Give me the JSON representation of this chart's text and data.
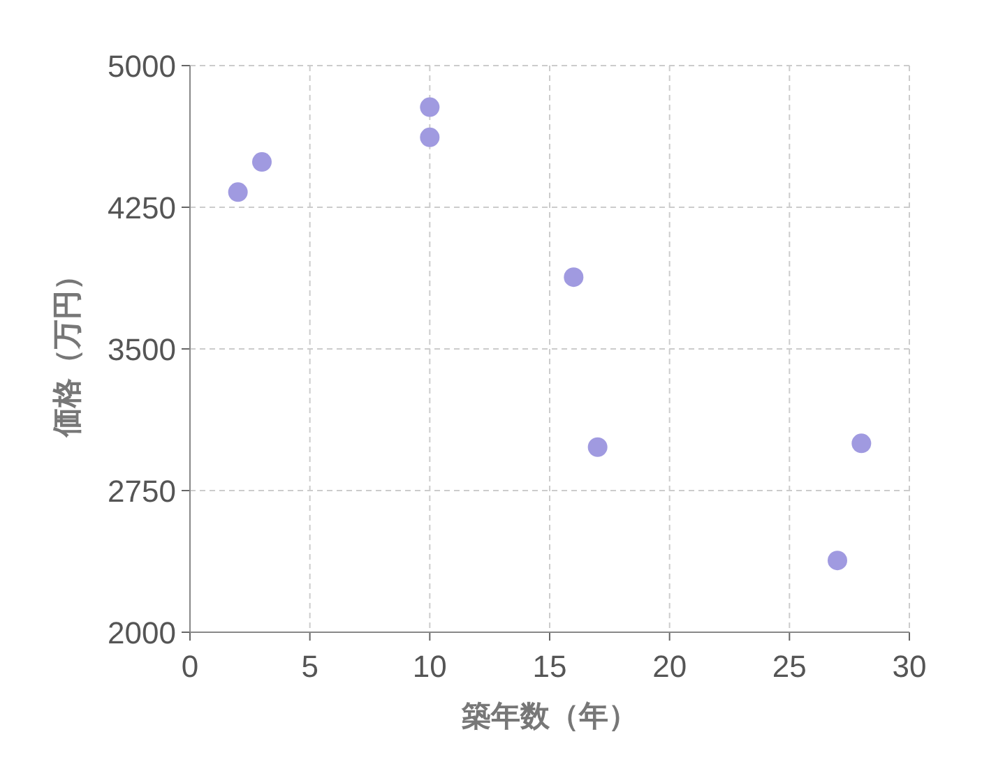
{
  "chart_data": {
    "type": "scatter",
    "xlabel": "築年数（年）",
    "ylabel": "価格（万円）",
    "x": [
      2,
      3,
      10,
      10,
      16,
      17,
      27,
      28
    ],
    "series": [
      {
        "color": "#a09ae0",
        "values": [
          4330,
          4490,
          4780,
          4620,
          3880,
          2980,
          2380,
          3000
        ]
      }
    ],
    "xlim": [
      0,
      30
    ],
    "xticks": [
      0,
      5,
      10,
      15,
      20,
      25,
      30
    ],
    "ylim": [
      2000,
      5000
    ],
    "yticks": [
      2000,
      2750,
      3500,
      4250,
      5000
    ],
    "grid": true,
    "marker": "circle"
  }
}
